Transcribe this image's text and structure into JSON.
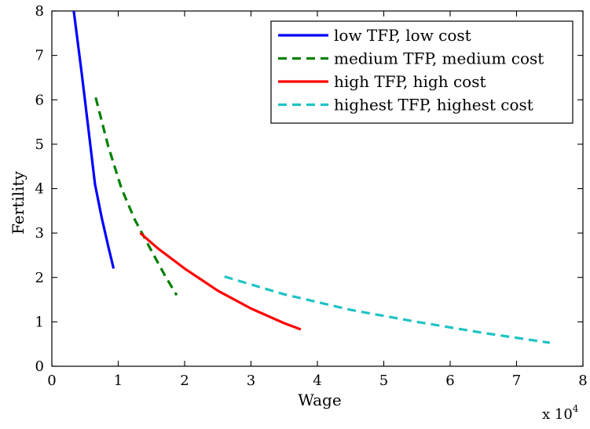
{
  "chart_data": {
    "type": "line",
    "title": "",
    "xlabel": "Wage",
    "ylabel": "Fertility",
    "xlim": [
      0,
      8
    ],
    "ylim": [
      0,
      8
    ],
    "x_scale_factor_label": "x 10",
    "x_scale_factor_exponent": "4",
    "x_ticks": [
      "0",
      "1",
      "2",
      "3",
      "4",
      "5",
      "6",
      "7",
      "8"
    ],
    "y_ticks": [
      "0",
      "1",
      "2",
      "3",
      "4",
      "5",
      "6",
      "7",
      "8"
    ],
    "grid": false,
    "legend_position": "top-right",
    "series": [
      {
        "name": "low TFP, low cost",
        "color": "#0000ff",
        "dash": "solid",
        "x": [
          0.33,
          0.45,
          0.55,
          0.65,
          0.75,
          0.85,
          0.93
        ],
        "y": [
          8.0,
          6.6,
          5.35,
          4.1,
          3.35,
          2.7,
          2.2
        ]
      },
      {
        "name": "medium TFP, medium cost",
        "color": "#008000",
        "dash": "dashed",
        "x": [
          0.66,
          0.85,
          1.05,
          1.25,
          1.5,
          1.7,
          1.88
        ],
        "y": [
          6.05,
          4.95,
          4.0,
          3.3,
          2.6,
          2.05,
          1.6
        ]
      },
      {
        "name": "high TFP, high cost",
        "color": "#ff0000",
        "dash": "solid",
        "x": [
          1.33,
          1.6,
          2.0,
          2.5,
          3.0,
          3.5,
          3.75
        ],
        "y": [
          3.0,
          2.65,
          2.2,
          1.7,
          1.3,
          0.97,
          0.83
        ]
      },
      {
        "name": "highest TFP, highest cost",
        "color": "#1fc3c3",
        "dash": "dashed",
        "x": [
          2.6,
          3.5,
          4.5,
          5.5,
          6.5,
          7.5
        ],
        "y": [
          2.02,
          1.62,
          1.27,
          1.0,
          0.75,
          0.53
        ]
      }
    ]
  }
}
